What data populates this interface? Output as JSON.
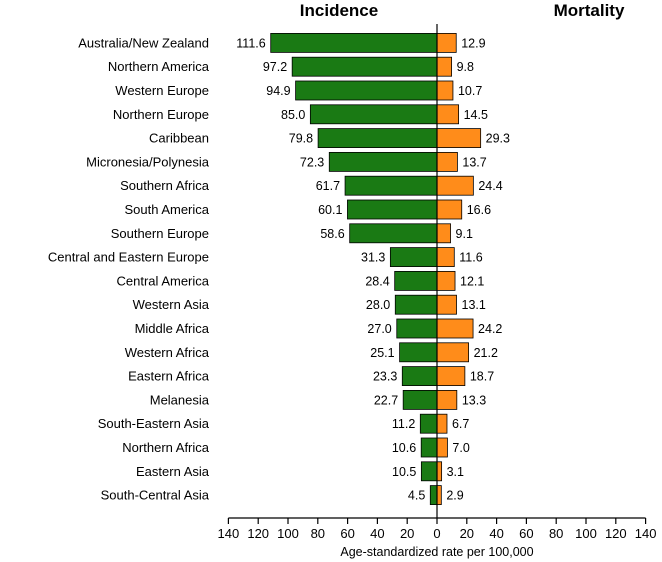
{
  "chart_data": {
    "type": "bar",
    "orientation": "horizontal",
    "layout": "back-to-back",
    "panel_titles": [
      "Incidence",
      "Mortality"
    ],
    "xlabel": "Age-standardized rate per 100,000",
    "xlim": [
      0,
      140
    ],
    "x_ticks": [
      140,
      120,
      100,
      80,
      60,
      40,
      20,
      0,
      20,
      40,
      60,
      80,
      100,
      120,
      140
    ],
    "grid": false,
    "categories": [
      "Australia/New Zealand",
      "Northern America",
      "Western Europe",
      "Northern Europe",
      "Caribbean",
      "Micronesia/Polynesia",
      "Southern Africa",
      "South America",
      "Southern Europe",
      "Central and Eastern Europe",
      "Central America",
      "Western Asia",
      "Middle Africa",
      "Western Africa",
      "Eastern Africa",
      "Melanesia",
      "South-Eastern Asia",
      "Northern Africa",
      "Eastern Asia",
      "South-Central Asia"
    ],
    "series": [
      {
        "name": "Incidence",
        "color": "#1a7a14",
        "values": [
          111.6,
          97.2,
          94.9,
          85.0,
          79.8,
          72.3,
          61.7,
          60.1,
          58.6,
          31.3,
          28.4,
          28.0,
          27.0,
          25.1,
          23.3,
          22.7,
          11.2,
          10.6,
          10.5,
          4.5
        ],
        "labels": [
          "111.6",
          "97.2",
          "94.9",
          "85.0",
          "79.8",
          "72.3",
          "61.7",
          "60.1",
          "58.6",
          "31.3",
          "28.4",
          "28.0",
          "27.0",
          "25.1",
          "23.3",
          "22.7",
          "11.2",
          "10.6",
          "10.5",
          "4.5"
        ]
      },
      {
        "name": "Mortality",
        "color": "#ff8c1a",
        "values": [
          12.9,
          9.8,
          10.7,
          14.5,
          29.3,
          13.7,
          24.4,
          16.6,
          9.1,
          11.6,
          12.1,
          13.1,
          24.2,
          21.2,
          18.7,
          13.3,
          6.7,
          7.0,
          3.1,
          2.9
        ],
        "labels": [
          "12.9",
          "9.8",
          "10.7",
          "14.5",
          "29.3",
          "13.7",
          "24.4",
          "16.6",
          "9.1",
          "11.6",
          "12.1",
          "13.1",
          "24.2",
          "21.2",
          "18.7",
          "13.3",
          "6.7",
          "7.0",
          "3.1",
          "2.9"
        ]
      }
    ]
  }
}
